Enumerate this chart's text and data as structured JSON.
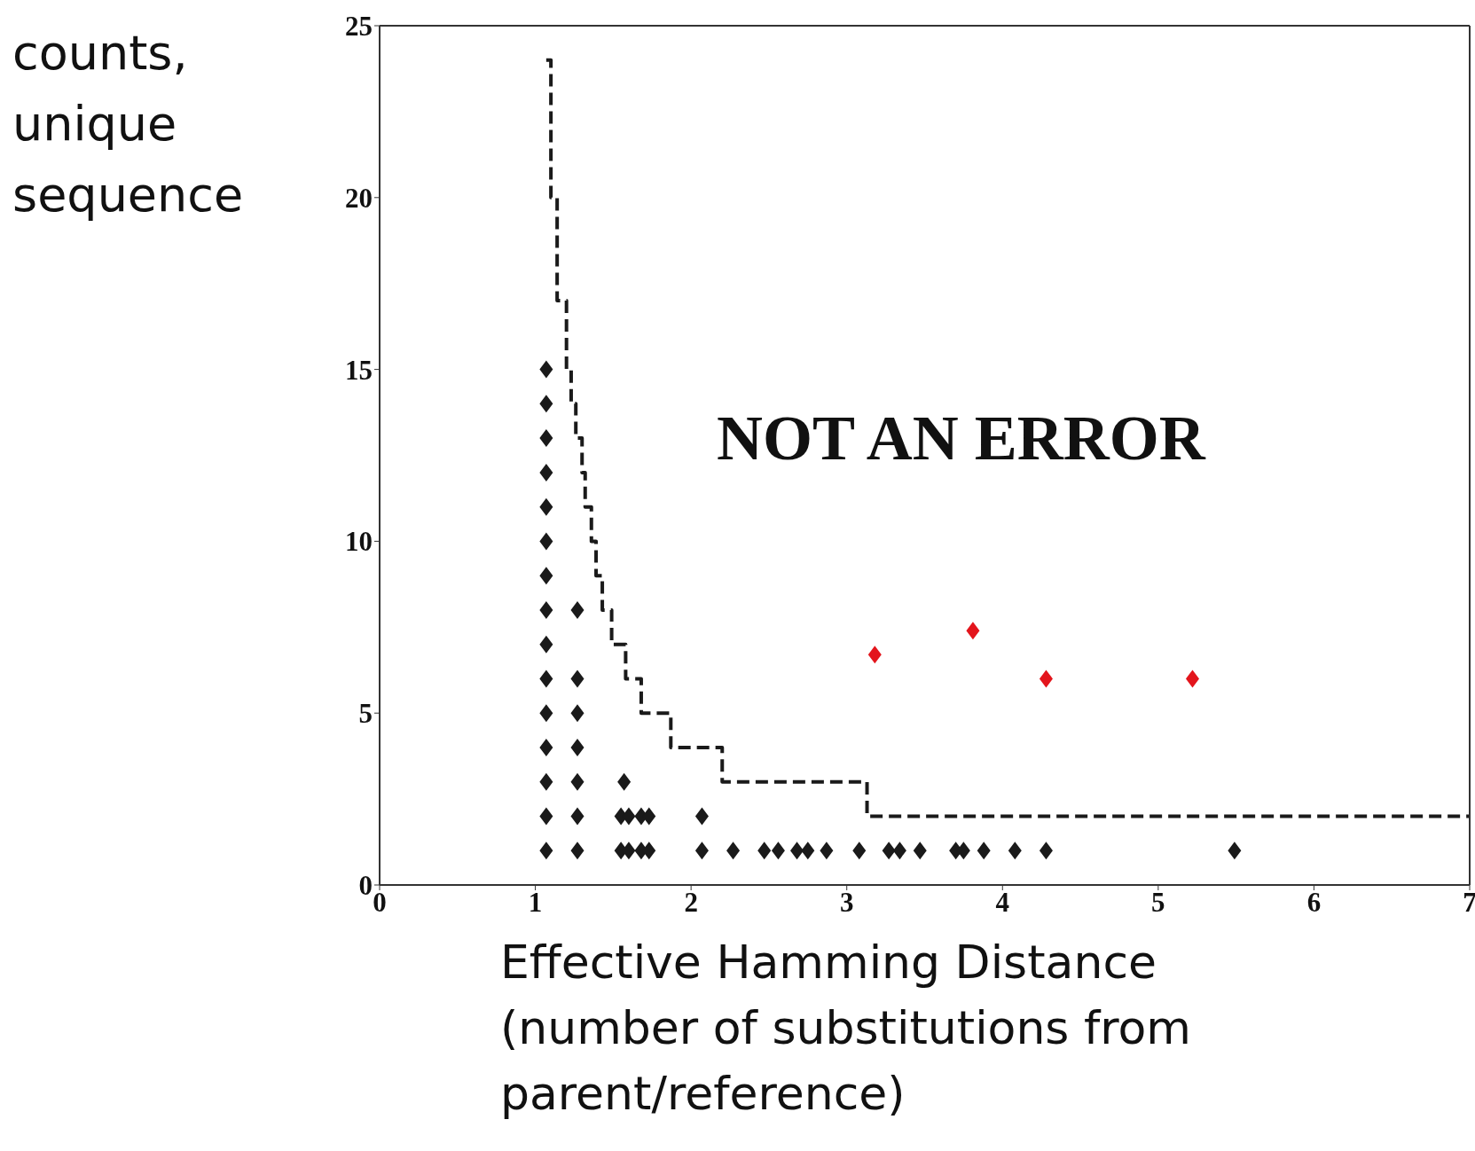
{
  "chart_data": {
    "type": "scatter",
    "xlabel": "Effective Hamming Distance (number of substitutions from parent/reference)",
    "ylabel": "counts, unique sequence",
    "annotations": [
      "NOT AN ERROR"
    ],
    "xlim": [
      0,
      7
    ],
    "xticks": [
      0,
      1,
      2,
      3,
      4,
      5,
      6,
      7
    ],
    "ylim": [
      0,
      25
    ],
    "yticks": [
      0,
      5,
      10,
      15,
      20,
      25
    ],
    "marker": "diamond",
    "grid": false,
    "legend": false,
    "series": [
      {
        "color": "#1a1a1a",
        "x": [
          1.07,
          1.07,
          1.07,
          1.07,
          1.07,
          1.07,
          1.07,
          1.07,
          1.07,
          1.07,
          1.07,
          1.07,
          1.07,
          1.07,
          1.07,
          1.27,
          1.27,
          1.27,
          1.27,
          1.27,
          1.27,
          1.27,
          1.55,
          1.55,
          1.57,
          1.6,
          1.6,
          1.68,
          1.68,
          1.73,
          1.73,
          2.07,
          2.07,
          2.27,
          2.47,
          2.56,
          2.68,
          2.75,
          2.87,
          3.08,
          3.27,
          3.34,
          3.47,
          3.7,
          3.75,
          3.88,
          4.08,
          4.28,
          5.49
        ],
        "values": [
          1,
          2,
          3,
          4,
          5,
          6,
          7,
          8,
          9,
          10,
          11,
          12,
          13,
          14,
          15,
          1,
          2,
          3,
          4,
          5,
          6,
          8,
          1,
          2,
          3,
          1,
          2,
          1,
          2,
          1,
          2,
          1,
          2,
          1,
          1,
          1,
          1,
          1,
          1,
          1,
          1,
          1,
          1,
          1,
          1,
          1,
          1,
          1,
          1
        ]
      },
      {
        "color": "#e3151c",
        "x": [
          3.18,
          3.81,
          4.28,
          5.22
        ],
        "values": [
          6.7,
          7.4,
          6,
          6
        ]
      },
      {
        "type": "step",
        "color": "#1a1a1a",
        "line_style": "dashed",
        "marker": "none",
        "x": [
          1.07,
          1.1,
          1.14,
          1.2,
          1.23,
          1.26,
          1.3,
          1.32,
          1.36,
          1.39,
          1.43,
          1.49,
          1.58,
          1.68,
          1.87,
          2.2,
          3.13,
          7
        ],
        "values": [
          24,
          20,
          17,
          15,
          14,
          13,
          12,
          11,
          10,
          9,
          8,
          7,
          6,
          5,
          4,
          3,
          2,
          2
        ]
      }
    ]
  }
}
